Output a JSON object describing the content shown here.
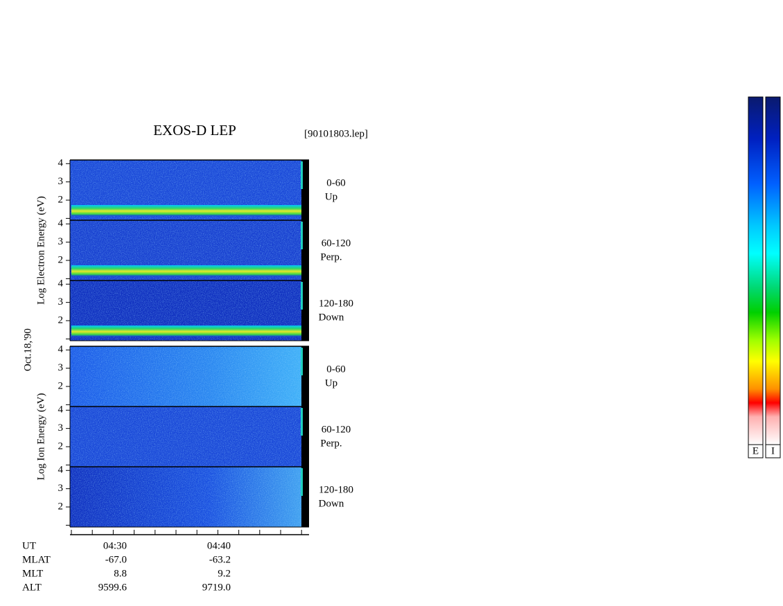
{
  "title": "EXOS-D LEP",
  "file": "[90101803.lep]",
  "date": "Oct.18,'90",
  "yticks": [
    2,
    3,
    4
  ],
  "ylim": [
    0.9,
    4.2
  ],
  "groups": [
    {
      "ylabel": "Log Electron Energy (eV)",
      "panels": [
        {
          "range": "0-60",
          "direction": "Up"
        },
        {
          "range": "60-120",
          "direction": "Perp."
        },
        {
          "range": "120-180",
          "direction": "Down"
        }
      ]
    },
    {
      "ylabel": "Log Ion Energy (eV)",
      "panels": [
        {
          "range": "0-60",
          "direction": "Up"
        },
        {
          "range": "60-120",
          "direction": "Perp."
        },
        {
          "range": "120-180",
          "direction": "Down"
        }
      ]
    }
  ],
  "ephemeris": {
    "labels": [
      "UT",
      "MLAT",
      "MLT",
      "ALT"
    ],
    "columns": [
      [
        "04:30",
        "-67.0",
        "8.8",
        "9599.6"
      ],
      [
        "04:40",
        "-63.2",
        "9.2",
        "9719.0"
      ]
    ]
  },
  "colorbars": [
    "E",
    "I"
  ]
}
